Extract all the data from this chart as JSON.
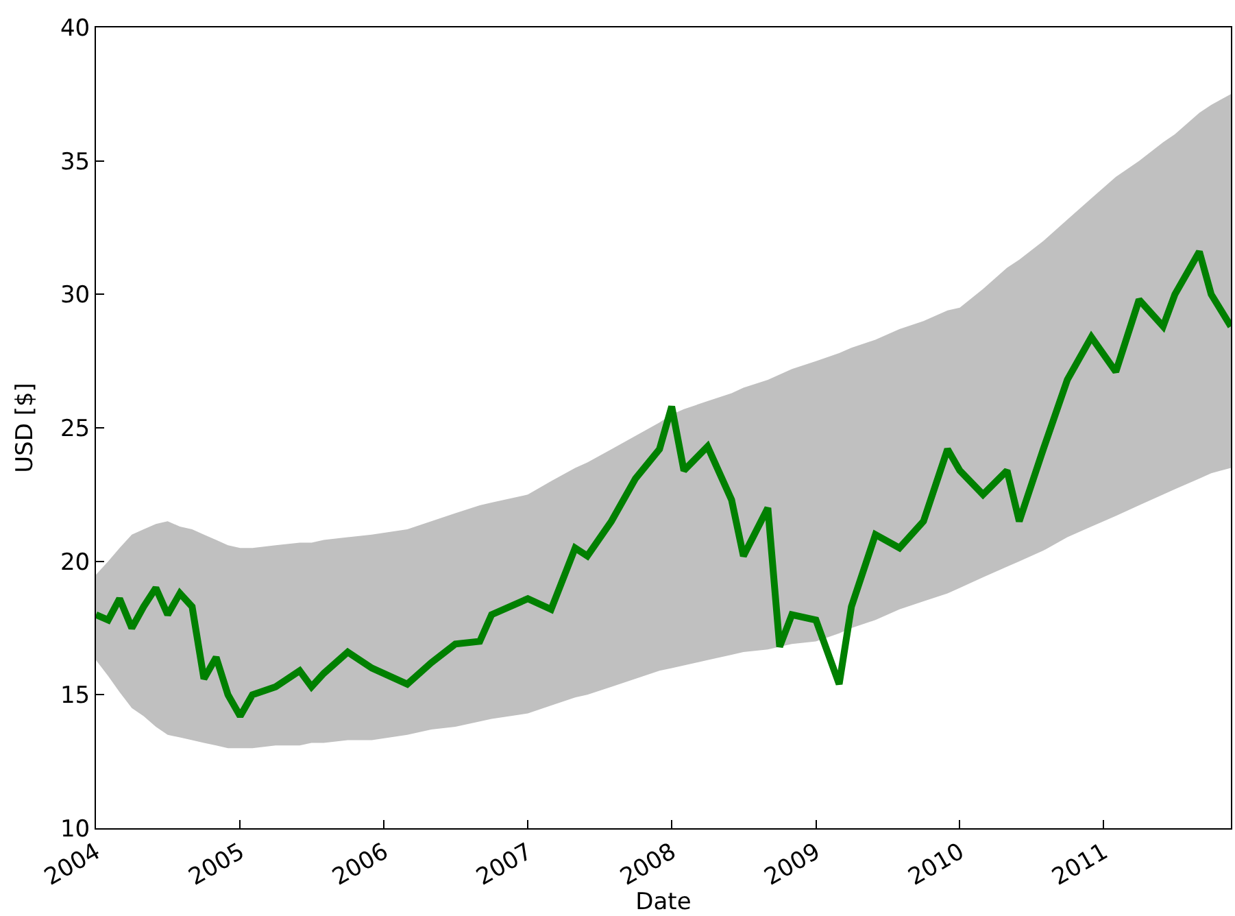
{
  "chart_data": {
    "type": "line",
    "xlabel": "Date",
    "ylabel": "USD [$]",
    "xlim": [
      "2004-01-01",
      "2011-11-20"
    ],
    "ylim": [
      10,
      40
    ],
    "xticks": [
      {
        "value": "2004-01-01",
        "label": "2004"
      },
      {
        "value": "2005-01-01",
        "label": "2005"
      },
      {
        "value": "2006-01-01",
        "label": "2006"
      },
      {
        "value": "2007-01-01",
        "label": "2007"
      },
      {
        "value": "2008-01-01",
        "label": "2008"
      },
      {
        "value": "2009-01-01",
        "label": "2009"
      },
      {
        "value": "2010-01-01",
        "label": "2010"
      },
      {
        "value": "2011-01-01",
        "label": "2011"
      }
    ],
    "yticks": [
      10,
      15,
      20,
      25,
      30,
      35,
      40
    ],
    "x": [
      "2004-01-01",
      "2004-02-01",
      "2004-03-01",
      "2004-04-01",
      "2004-05-01",
      "2004-06-01",
      "2004-07-01",
      "2004-08-01",
      "2004-09-01",
      "2004-10-01",
      "2004-11-01",
      "2004-12-01",
      "2005-01-01",
      "2005-02-01",
      "2005-04-01",
      "2005-06-01",
      "2005-07-01",
      "2005-08-01",
      "2005-10-01",
      "2005-12-01",
      "2006-03-01",
      "2006-05-01",
      "2006-07-01",
      "2006-09-01",
      "2006-10-01",
      "2007-01-01",
      "2007-03-01",
      "2007-05-01",
      "2007-06-01",
      "2007-08-01",
      "2007-10-01",
      "2007-12-01",
      "2008-01-01",
      "2008-02-01",
      "2008-04-01",
      "2008-06-01",
      "2008-07-01",
      "2008-09-01",
      "2008-10-01",
      "2008-11-01",
      "2009-01-01",
      "2009-03-01",
      "2009-04-01",
      "2009-06-01",
      "2009-08-01",
      "2009-10-01",
      "2009-12-01",
      "2010-01-01",
      "2010-03-01",
      "2010-05-01",
      "2010-06-01",
      "2010-08-01",
      "2010-10-01",
      "2010-12-01",
      "2011-02-01",
      "2011-04-01",
      "2011-06-01",
      "2011-07-01",
      "2011-09-01",
      "2011-10-01",
      "2011-11-20"
    ],
    "series": [
      {
        "color": "#008000",
        "values": [
          18.0,
          17.8,
          18.6,
          17.5,
          18.3,
          19.0,
          18.0,
          18.8,
          18.3,
          15.6,
          16.4,
          15.0,
          14.2,
          15.0,
          15.3,
          15.9,
          15.3,
          15.8,
          16.6,
          16.0,
          15.4,
          16.2,
          16.9,
          17.0,
          18.0,
          18.6,
          18.2,
          20.5,
          20.2,
          21.5,
          23.1,
          24.2,
          25.8,
          23.4,
          24.3,
          22.3,
          20.2,
          22.0,
          16.8,
          18.0,
          17.8,
          15.4,
          18.3,
          21.0,
          20.5,
          21.5,
          24.2,
          23.4,
          22.5,
          23.4,
          21.5,
          24.2,
          26.8,
          28.4,
          27.1,
          29.8,
          28.8,
          30.0,
          31.6,
          30.0,
          28.8
        ],
        "lower": [
          16.3,
          15.7,
          15.1,
          14.5,
          14.2,
          13.8,
          13.5,
          13.4,
          13.3,
          13.2,
          13.1,
          13.0,
          13.0,
          13.0,
          13.1,
          13.1,
          13.2,
          13.2,
          13.3,
          13.3,
          13.5,
          13.7,
          13.8,
          14.0,
          14.1,
          14.3,
          14.6,
          14.9,
          15.0,
          15.3,
          15.6,
          15.9,
          16.0,
          16.1,
          16.3,
          16.5,
          16.6,
          16.7,
          16.8,
          16.9,
          17.0,
          17.3,
          17.5,
          17.8,
          18.2,
          18.5,
          18.8,
          19.0,
          19.4,
          19.8,
          20.0,
          20.4,
          20.9,
          21.3,
          21.7,
          22.1,
          22.5,
          22.7,
          23.1,
          23.3,
          23.5
        ],
        "upper": [
          19.5,
          20.0,
          20.5,
          21.0,
          21.2,
          21.4,
          21.5,
          21.3,
          21.2,
          21.0,
          20.8,
          20.6,
          20.5,
          20.5,
          20.6,
          20.7,
          20.7,
          20.8,
          20.9,
          21.0,
          21.2,
          21.5,
          21.8,
          22.1,
          22.2,
          22.5,
          23.0,
          23.5,
          23.7,
          24.2,
          24.7,
          25.2,
          25.5,
          25.7,
          26.0,
          26.3,
          26.5,
          26.8,
          27.0,
          27.2,
          27.5,
          27.8,
          28.0,
          28.3,
          28.7,
          29.0,
          29.4,
          29.5,
          30.2,
          31.0,
          31.3,
          32.0,
          32.8,
          33.6,
          34.4,
          35.0,
          35.7,
          36.0,
          36.8,
          37.1,
          37.5
        ]
      }
    ]
  }
}
